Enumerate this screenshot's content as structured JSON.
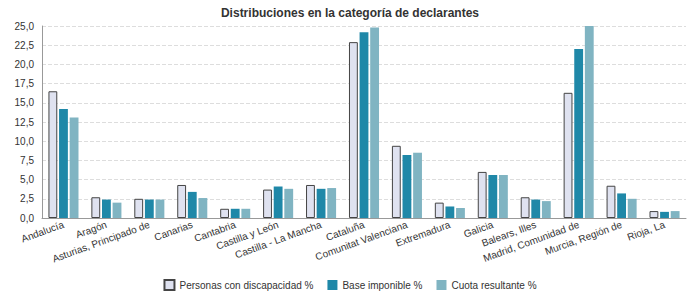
{
  "chart_data": {
    "type": "bar",
    "title": "Distribuciones en la categoría de declarantes",
    "categories": [
      "Andalucía",
      "Aragón",
      "Asturias, Principado de",
      "Canarias",
      "Cantabria",
      "Castilla y León",
      "Castilla - La Mancha",
      "Cataluña",
      "Comunitat Valenciana",
      "Extremadura",
      "Galicia",
      "Balears, Illes",
      "Madrid, Comunidad de",
      "Murcia, Región de",
      "Rioja, La"
    ],
    "series": [
      {
        "name": "Personas con discapacidad %",
        "color": "#dfe2f0",
        "values": [
          16.5,
          2.7,
          2.5,
          4.3,
          1.2,
          3.7,
          4.3,
          22.9,
          9.4,
          2.0,
          6.0,
          2.7,
          16.3,
          4.2,
          0.9
        ]
      },
      {
        "name": "Base imponible %",
        "color": "#1f88a8",
        "values": [
          14.2,
          2.4,
          2.4,
          3.4,
          1.2,
          4.1,
          3.8,
          24.2,
          8.2,
          1.5,
          5.6,
          2.4,
          22.0,
          3.2,
          0.8
        ]
      },
      {
        "name": "Cuota resultante %",
        "color": "#80b4c2",
        "values": [
          13.1,
          2.0,
          2.4,
          2.6,
          1.2,
          3.8,
          3.9,
          24.8,
          8.5,
          1.3,
          5.6,
          2.2,
          25.0,
          2.5,
          0.9
        ]
      }
    ],
    "ylim": [
      0,
      25
    ],
    "yticks": [
      {
        "value": 0,
        "label": "0,0"
      },
      {
        "value": 2.5,
        "label": "2,5"
      },
      {
        "value": 5,
        "label": "5,0"
      },
      {
        "value": 7.5,
        "label": "7,5"
      },
      {
        "value": 10,
        "label": "10,0"
      },
      {
        "value": 12.5,
        "label": "12,5"
      },
      {
        "value": 15,
        "label": "15,0"
      },
      {
        "value": 17.5,
        "label": "17,5"
      },
      {
        "value": 20,
        "label": "20,0"
      },
      {
        "value": 22.5,
        "label": "22,5"
      },
      {
        "value": 25,
        "label": "25,0"
      }
    ],
    "grid": true,
    "legend": "bottom"
  }
}
